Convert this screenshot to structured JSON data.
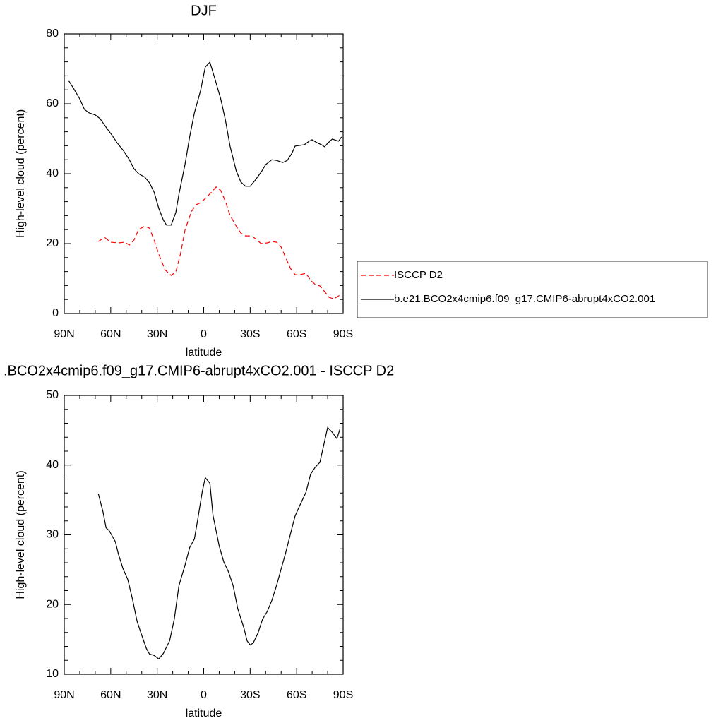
{
  "chart_data": [
    {
      "type": "line",
      "title": "DJF",
      "xlabel": "latitude",
      "ylabel": "High-level cloud (percent)",
      "xlim": [
        90,
        -90
      ],
      "xticks": [
        {
          "value": 90,
          "label": "90N"
        },
        {
          "value": 60,
          "label": "60N"
        },
        {
          "value": 30,
          "label": "30N"
        },
        0,
        {
          "value": -30,
          "label": "30S"
        },
        {
          "value": -60,
          "label": "60S"
        },
        {
          "value": -90,
          "label": "90S"
        }
      ],
      "xminorticks": [
        80,
        70,
        50,
        40,
        20,
        10,
        -10,
        -20,
        -40,
        -50,
        -70,
        -80
      ],
      "ylim": [
        0,
        80
      ],
      "yticks": [
        0,
        20,
        40,
        60,
        80
      ],
      "yminorticks": [
        4,
        8,
        12,
        16,
        24,
        28,
        32,
        36,
        44,
        48,
        52,
        56,
        64,
        68,
        72,
        76
      ],
      "legend": "right",
      "series": [
        {
          "name": "ISCCP D2",
          "color": "#ff0000",
          "dash": true,
          "x": [
            68,
            64,
            60,
            55,
            51,
            48,
            45,
            42,
            38,
            35,
            32,
            29,
            25,
            21,
            18,
            15,
            12,
            8,
            5,
            2,
            -1,
            -5,
            -8,
            -11,
            -14,
            -17,
            -21,
            -24,
            -27,
            -31,
            -34,
            -37,
            -41,
            -44,
            -47,
            -50,
            -53,
            -56,
            -59,
            -62,
            -66,
            -69,
            -72,
            -75,
            -78,
            -81,
            -84,
            -87,
            -89
          ],
          "values": [
            20.6,
            21.8,
            20.4,
            20.2,
            20.4,
            19.6,
            21,
            24,
            25,
            24.4,
            21,
            17,
            12.5,
            10.9,
            11.9,
            17,
            24,
            29.1,
            31.1,
            31.7,
            32.9,
            34.7,
            36.2,
            35.2,
            32.1,
            28.1,
            25,
            23,
            22.2,
            22.2,
            21.2,
            20,
            20.2,
            20.6,
            20.4,
            19,
            15.9,
            12.9,
            11.1,
            11.1,
            11.5,
            9.5,
            8.3,
            7.9,
            6.3,
            4.6,
            4.2,
            5,
            5.7
          ]
        },
        {
          "name": "b.e21.BCO2x4cmip6.f09_g17.CMIP6-abrupt4xCO2.001",
          "color": "#000000",
          "dash": false,
          "x": [
            87,
            84,
            80,
            77,
            74,
            70,
            67,
            63,
            59,
            56,
            52,
            48,
            45,
            42,
            38,
            35,
            32,
            29,
            26,
            24,
            21,
            18,
            16,
            12,
            9,
            6,
            2,
            -1,
            -4,
            -7,
            -11,
            -14,
            -17,
            -21,
            -24,
            -27,
            -30,
            -33,
            -37,
            -40,
            -44,
            -47,
            -51,
            -54,
            -57,
            -59,
            -62,
            -65,
            -68,
            -70,
            -73,
            -76,
            -78,
            -80,
            -83,
            -87,
            -89
          ],
          "values": [
            66.5,
            64.4,
            61.4,
            58.4,
            57.4,
            56.8,
            55.8,
            53.3,
            50.9,
            48.9,
            46.7,
            44,
            41.4,
            40,
            39,
            37.4,
            34.7,
            30.1,
            26.7,
            25.3,
            25.3,
            28.9,
            34.1,
            42.8,
            50.7,
            57.4,
            63.8,
            70.5,
            71.9,
            67.5,
            61.4,
            55.4,
            47.9,
            40.8,
            37.6,
            36.4,
            36.4,
            38,
            40.4,
            42.6,
            44,
            43.8,
            43.2,
            43.8,
            45.9,
            47.9,
            48.1,
            48.3,
            49.3,
            49.7,
            48.9,
            48.3,
            47.7,
            48.7,
            49.9,
            49.3,
            50.5
          ]
        }
      ]
    },
    {
      "type": "line",
      "title": ".BCO2x4cmip6.f09_g17.CMIP6-abrupt4xCO2.001 - ISCCP D2",
      "xlabel": "latitude",
      "ylabel": "High-level cloud (percent)",
      "xlim": [
        90,
        -90
      ],
      "xticks": [
        {
          "value": 90,
          "label": "90N"
        },
        {
          "value": 60,
          "label": "60N"
        },
        {
          "value": 30,
          "label": "30N"
        },
        0,
        {
          "value": -30,
          "label": "30S"
        },
        {
          "value": -60,
          "label": "60S"
        },
        {
          "value": -90,
          "label": "90S"
        }
      ],
      "xminorticks": [
        80,
        70,
        50,
        40,
        20,
        10,
        -10,
        -20,
        -40,
        -50,
        -70,
        -80
      ],
      "ylim": [
        10,
        50
      ],
      "yticks": [
        10,
        20,
        30,
        40,
        50
      ],
      "yminorticks": [
        12,
        14,
        16,
        18,
        22,
        24,
        26,
        28,
        32,
        34,
        36,
        38,
        42,
        44,
        46,
        48
      ],
      "color": "#000000",
      "x": [
        68,
        65,
        63,
        61,
        57,
        55,
        52,
        49,
        46,
        43,
        40,
        37,
        35,
        32,
        29,
        26,
        22,
        19,
        16,
        12,
        9,
        6,
        4,
        1,
        -1,
        -4,
        -6,
        -10,
        -13,
        -16,
        -19,
        -22,
        -26,
        -28,
        -30,
        -32,
        -35,
        -38,
        -41,
        -44,
        -47,
        -50,
        -53,
        -57,
        -59,
        -62,
        -66,
        -69,
        -72,
        -75,
        -78,
        -80,
        -83,
        -86,
        -88
      ],
      "values": [
        35.9,
        33.3,
        31,
        30.6,
        29,
        27.2,
        25.1,
        23.6,
        20.8,
        17.6,
        15.6,
        13.7,
        12.9,
        12.7,
        12.2,
        13,
        14.8,
        17.9,
        22.7,
        25.7,
        28.2,
        29.4,
        32,
        36.1,
        38.2,
        37.4,
        32.8,
        28.4,
        26.1,
        24.7,
        22.7,
        19.4,
        16.6,
        14.8,
        14.2,
        14.5,
        15.9,
        17.9,
        19,
        20.6,
        22.7,
        25.1,
        27.5,
        31,
        32.7,
        34.2,
        36.1,
        38.7,
        39.7,
        40.4,
        43.4,
        45.4,
        44.7,
        43.8,
        45.2
      ]
    }
  ]
}
